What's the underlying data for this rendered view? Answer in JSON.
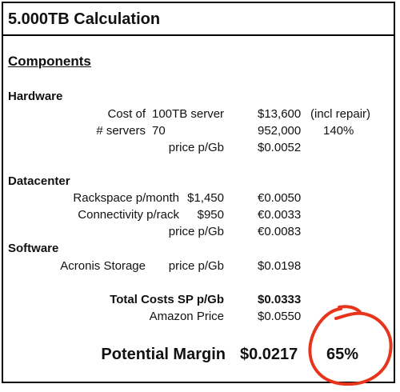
{
  "title": "5.000TB Calculation",
  "components_heading": "Components",
  "hardware": {
    "heading": "Hardware",
    "row1": {
      "label": "Cost of",
      "item": "100TB server",
      "value": "$13,600",
      "note": "(incl repair)"
    },
    "row2": {
      "label": "# servers",
      "item": "70",
      "value": "952,000",
      "note": "140%"
    },
    "row3": {
      "label": "price p/Gb",
      "value": "$0.0052"
    }
  },
  "datacenter": {
    "heading": "Datacenter",
    "row1": {
      "label": "Rackspace p/month",
      "amount": "$1,450",
      "value": "€0.0050"
    },
    "row2": {
      "label": "Connectivity p/rack",
      "amount": "$950",
      "value": "€0.0033"
    },
    "row3": {
      "label": "price p/Gb",
      "value": "€0.0083"
    }
  },
  "software": {
    "heading": "Software",
    "row1": {
      "label": "Acronis Storage",
      "sublabel": "price p/Gb",
      "value": "$0.0198"
    }
  },
  "totals": {
    "total_label": "Total Costs SP p/Gb",
    "total_value": "$0.0333",
    "amazon_label": "Amazon Price",
    "amazon_value": "$0.0550"
  },
  "margin": {
    "label": "Potential Margin",
    "value": "$0.0217",
    "percent": "65%"
  },
  "colors": {
    "circle": "#e8341c",
    "border": "#000000"
  }
}
